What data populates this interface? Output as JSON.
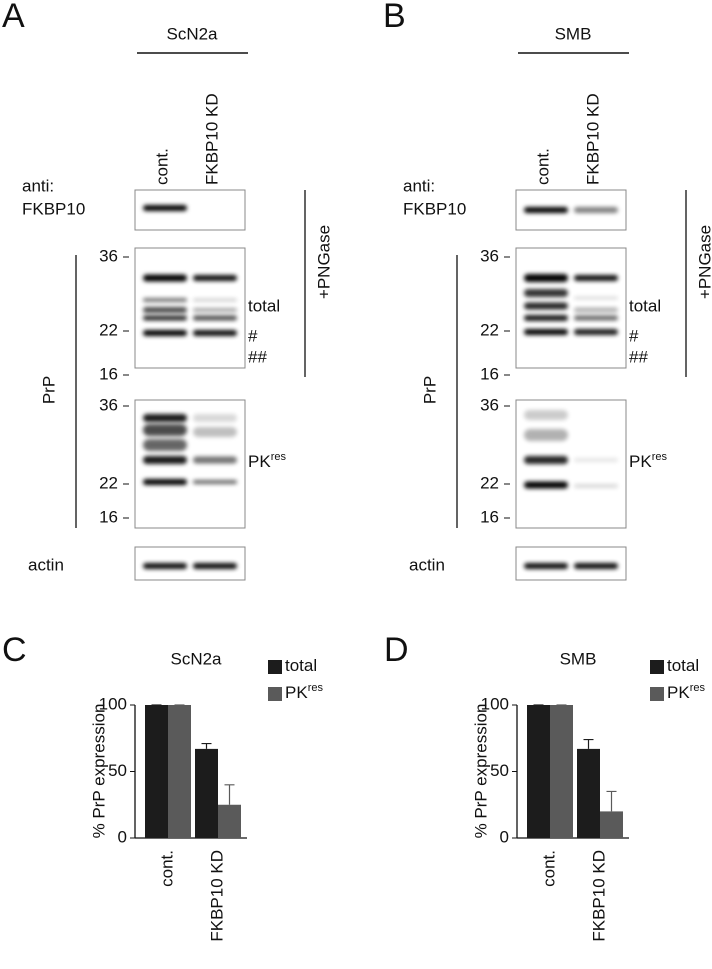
{
  "blot_panels": [
    {
      "letter": "A",
      "cell_line": "ScN2a",
      "lanes": [
        "cont.",
        "FKBP10 KD"
      ],
      "antibody": [
        "anti:",
        "FKBP10"
      ],
      "treatment": "+PNGase",
      "prp_label": "PrP",
      "total_markers": [
        "36",
        "22",
        "16"
      ],
      "pk_markers": [
        "36",
        "22",
        "16"
      ],
      "band_labels": [
        "total",
        "#",
        "##"
      ],
      "pk_label": {
        "text": "PK",
        "sup": "res"
      },
      "loading": "actin"
    },
    {
      "letter": "B",
      "cell_line": "SMB",
      "lanes": [
        "cont.",
        "FKBP10 KD"
      ],
      "antibody": [
        "anti:",
        "FKBP10"
      ],
      "treatment": "+PNGase",
      "prp_label": "PrP",
      "total_markers": [
        "36",
        "22",
        "16"
      ],
      "pk_markers": [
        "36",
        "22",
        "16"
      ],
      "band_labels": [
        "total",
        "#",
        "##"
      ],
      "pk_label": {
        "text": "PK",
        "sup": "res"
      },
      "loading": "actin"
    }
  ],
  "chart_data": [
    {
      "type": "bar",
      "letter": "C",
      "title": "ScN2a",
      "y_label": "% PrP expression",
      "categories": [
        "cont.",
        "FKBP10 KD"
      ],
      "series": [
        {
          "name": "total",
          "color": "#1c1c1c",
          "values": [
            100,
            67
          ],
          "errors": [
            0,
            4
          ]
        },
        {
          "name": "PK",
          "name_sup": "res",
          "color": "#5a5a5a",
          "values": [
            100,
            25
          ],
          "errors": [
            0,
            15
          ]
        }
      ],
      "ylim": [
        0,
        100
      ],
      "yticks": [
        0,
        50,
        100
      ],
      "legend": "upper right"
    },
    {
      "type": "bar",
      "letter": "D",
      "title": "SMB",
      "y_label": "% PrP expression",
      "categories": [
        "cont.",
        "FKBP10 KD"
      ],
      "series": [
        {
          "name": "total",
          "color": "#1c1c1c",
          "values": [
            100,
            67
          ],
          "errors": [
            0,
            7
          ]
        },
        {
          "name": "PK",
          "name_sup": "res",
          "color": "#5a5a5a",
          "values": [
            100,
            20
          ],
          "errors": [
            0,
            15
          ]
        }
      ],
      "ylim": [
        0,
        100
      ],
      "yticks": [
        0,
        50,
        100
      ],
      "legend": "upper right"
    }
  ]
}
